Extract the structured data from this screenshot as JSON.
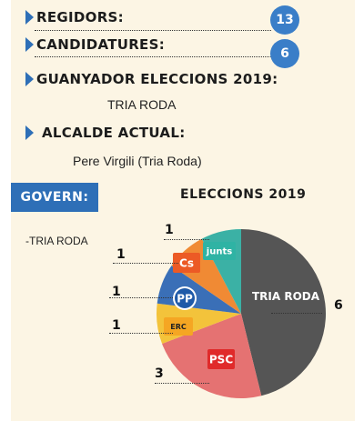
{
  "info": {
    "regidors_label": "REGIDORS:",
    "regidors_value": "13",
    "candidatures_label": "CANDIDATURES:",
    "candidatures_value": "6",
    "winner_label": "GUANYADOR ELECCIONS 2019:",
    "winner_value": "TRIA RODA",
    "mayor_label": "ALCALDE ACTUAL:",
    "mayor_value": "Pere Virgili (Tria Roda)"
  },
  "govern": {
    "label": "GOVERN:",
    "items": [
      "-TRIA RODA"
    ]
  },
  "chart_data": {
    "type": "pie",
    "title": "ELECCIONS 2019",
    "slices": [
      {
        "name": "TRIA RODA",
        "value": 6,
        "color": "#555555",
        "label_text": "TRIA RODA"
      },
      {
        "name": "PSC",
        "value": 3,
        "color": "#e57272",
        "logo_text": "PSC",
        "logo_color": "#e02a2a"
      },
      {
        "name": "ERC",
        "value": 1,
        "color": "#f3c33b",
        "logo_text": "ERC",
        "logo_color": "#f5a623"
      },
      {
        "name": "PP",
        "value": 1,
        "color": "#3a6fb7",
        "logo_text": "PP",
        "logo_color": "#1f5aa8"
      },
      {
        "name": "Cs",
        "value": 1,
        "color": "#f08a34",
        "logo_text": "Cs",
        "logo_color": "#ec5a25"
      },
      {
        "name": "Junts",
        "value": 1,
        "color": "#3bb1a5",
        "logo_text": "junts",
        "logo_color": "#2fb3a4"
      }
    ],
    "seat_labels": [
      "6",
      "3",
      "1",
      "1",
      "1",
      "1"
    ]
  },
  "colors": {
    "accent": "#2e6fb7",
    "background": "#fcf5e4"
  }
}
